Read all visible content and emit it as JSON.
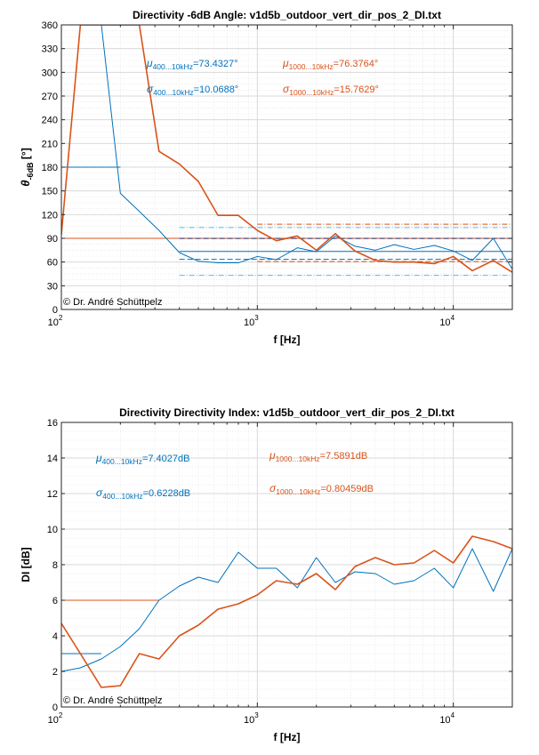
{
  "colors": {
    "blue": "#0072BD",
    "orange": "#D95319",
    "cyan": "#4DBEEE",
    "navy": "#1f2a6b"
  },
  "chart_data": [
    {
      "type": "line",
      "title": "Directivity -6dB Angle: v1d5b_outdoor_vert_dir_pos_2_DI.txt",
      "xlabel": "f [Hz]",
      "ylabel": {
        "main": "θ",
        "sub": "-6dB",
        "unit": " [°]"
      },
      "xscale": "log",
      "xlim": [
        100,
        20000
      ],
      "ylim": [
        0,
        360
      ],
      "yticks": [
        "0",
        "30",
        "60",
        "90",
        "120",
        "150",
        "180",
        "210",
        "240",
        "270",
        "300",
        "330",
        "360"
      ],
      "xticks": [
        {
          "base": "10",
          "exp": "2"
        },
        {
          "base": "10",
          "exp": "3"
        },
        {
          "base": "10",
          "exp": "4"
        }
      ],
      "grid": true,
      "copyright": "©  Dr. André Schüttpelz",
      "annotations": [
        {
          "sym": "μ",
          "sub": "400...10kHz",
          "text": "=73.4327°",
          "color": "blue"
        },
        {
          "sym": "σ",
          "sub": "400...10kHz",
          "text": "=10.0688°",
          "color": "blue"
        },
        {
          "sym": "μ",
          "sub": "1000...10kHz",
          "text": "=76.3764°",
          "color": "orange"
        },
        {
          "sym": "σ",
          "sub": "1000...10kHz",
          "text": "=15.7629°",
          "color": "orange"
        }
      ],
      "series": [
        {
          "color": "blue",
          "x": [
            100,
            125,
            160,
            200,
            250,
            315,
            400,
            500,
            630,
            800,
            1000,
            1250,
            1600,
            2000,
            2500,
            3150,
            4000,
            5000,
            6300,
            8000,
            10000,
            12500,
            16000,
            20000
          ],
          "y": [
            360,
            360,
            360,
            147,
            124,
            100,
            72,
            61,
            59,
            59,
            67,
            63,
            78,
            73,
            93,
            80,
            75,
            82,
            76,
            81,
            74,
            62,
            90,
            51
          ]
        },
        {
          "color": "orange",
          "x": [
            100,
            125,
            160,
            200,
            250,
            315,
            400,
            500,
            630,
            800,
            1000,
            1250,
            1600,
            2000,
            2500,
            3150,
            4000,
            5000,
            6300,
            8000,
            10000,
            12500,
            16000,
            20000
          ],
          "y": [
            95,
            360,
            360,
            360,
            360,
            200,
            184,
            162,
            119,
            119,
            100,
            87,
            93,
            75,
            96,
            74,
            62,
            60,
            60,
            58,
            67,
            49,
            62,
            47
          ]
        }
      ],
      "reference_lines": [
        {
          "color": "blue",
          "style": "solid",
          "y": 180,
          "x_from": 100,
          "x_to": 200
        },
        {
          "color": "blue",
          "style": "solid",
          "y": 73.4327,
          "x_from": 400,
          "x_to": 20000
        },
        {
          "color": "blue",
          "style": "dashed",
          "y": 63.3639,
          "x_from": 400,
          "x_to": 20000
        },
        {
          "color": "cyan",
          "style": "dashdot",
          "y": 103.6391,
          "x_from": 400,
          "x_to": 20000
        },
        {
          "color": "cyan",
          "style": "dashdot",
          "y": 43.2263,
          "x_from": 400,
          "x_to": 20000
        },
        {
          "color": "orange",
          "style": "solid",
          "y": 90,
          "x_from": 100,
          "x_to": 20000
        },
        {
          "color": "navy",
          "style": "dashed",
          "y": 89.8,
          "x_from": 400,
          "x_to": 20000
        },
        {
          "color": "orange",
          "style": "dashed",
          "y": 60.6135,
          "x_from": 1000,
          "x_to": 20000
        },
        {
          "color": "orange",
          "style": "dashdot",
          "y": 107.9,
          "x_from": 1000,
          "x_to": 20000
        }
      ]
    },
    {
      "type": "line",
      "title": "Directivity Directivity Index: v1d5b_outdoor_vert_dir_pos_2_DI.txt",
      "xlabel": "f [Hz]",
      "ylabel": {
        "main": "DI [dB]",
        "sub": "",
        "unit": ""
      },
      "xscale": "log",
      "xlim": [
        100,
        20000
      ],
      "ylim": [
        0,
        16
      ],
      "yticks": [
        "0",
        "2",
        "4",
        "6",
        "8",
        "10",
        "12",
        "14",
        "16"
      ],
      "xticks": [
        {
          "base": "10",
          "exp": "2"
        },
        {
          "base": "10",
          "exp": "3"
        },
        {
          "base": "10",
          "exp": "4"
        }
      ],
      "grid": true,
      "copyright": "©  Dr. André Schüttpelz",
      "annotations": [
        {
          "sym": "μ",
          "sub": "400...10kHz",
          "text": "=7.4027dB",
          "color": "blue"
        },
        {
          "sym": "σ",
          "sub": "400...10kHz",
          "text": "=0.6228dB",
          "color": "blue"
        },
        {
          "sym": "μ",
          "sub": "1000...10kHz",
          "text": "=7.5891dB",
          "color": "orange"
        },
        {
          "sym": "σ",
          "sub": "1000...10kHz",
          "text": "=0.80459dB",
          "color": "orange"
        }
      ],
      "series": [
        {
          "color": "blue",
          "x": [
            100,
            125,
            160,
            200,
            250,
            315,
            400,
            500,
            630,
            800,
            1000,
            1250,
            1600,
            2000,
            2500,
            3150,
            4000,
            5000,
            6300,
            8000,
            10000,
            12500,
            16000,
            20000
          ],
          "y": [
            2.0,
            2.2,
            2.7,
            3.4,
            4.4,
            6.0,
            6.8,
            7.3,
            7.0,
            8.7,
            7.8,
            7.8,
            6.7,
            8.4,
            7.0,
            7.6,
            7.5,
            6.9,
            7.1,
            7.8,
            6.7,
            8.9,
            6.5,
            8.9
          ]
        },
        {
          "color": "orange",
          "x": [
            100,
            125,
            160,
            200,
            250,
            315,
            400,
            500,
            630,
            800,
            1000,
            1250,
            1600,
            2000,
            2500,
            3150,
            4000,
            5000,
            6300,
            8000,
            10000,
            12500,
            16000,
            20000
          ],
          "y": [
            4.7,
            3.0,
            1.1,
            1.2,
            3.0,
            2.7,
            4.0,
            4.6,
            5.5,
            5.8,
            6.3,
            7.1,
            6.9,
            7.5,
            6.6,
            7.9,
            8.4,
            8.0,
            8.1,
            8.8,
            8.1,
            9.6,
            9.3,
            8.9
          ]
        }
      ],
      "reference_lines": [
        {
          "color": "blue",
          "style": "solid",
          "y": 3.0,
          "x_from": 100,
          "x_to": 160
        },
        {
          "color": "orange",
          "style": "solid",
          "y": 6.0,
          "x_from": 100,
          "x_to": 315
        }
      ]
    }
  ]
}
